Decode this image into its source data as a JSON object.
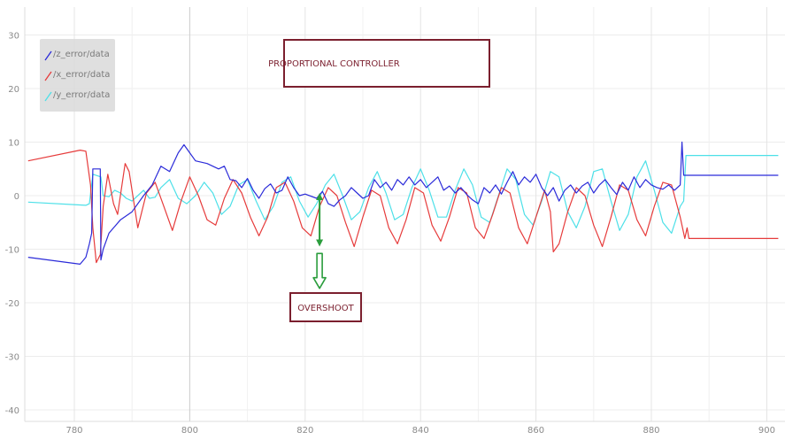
{
  "chart_data": {
    "type": "line",
    "title": "",
    "xlabel": "",
    "ylabel": "",
    "xlim": [
      772,
      902
    ],
    "ylim": [
      -42,
      32
    ],
    "x_ticks": [
      780,
      800,
      820,
      840,
      860,
      880,
      900
    ],
    "x_tick_labels": [
      "780",
      "800",
      "820",
      "840",
      "860",
      "880",
      "900"
    ],
    "y_ticks": [
      30,
      20,
      10,
      0,
      -10,
      -20,
      -30,
      -40
    ],
    "y_tick_labels": [
      "30",
      "20",
      "10",
      "0",
      "-10",
      "-20",
      "-30",
      "-40"
    ],
    "grid": true,
    "legend_position": "top-left",
    "series": [
      {
        "name": "/z_error/data",
        "color": "#2b2bd9",
        "points": [
          [
            772,
            -11.5
          ],
          [
            781,
            -12.8
          ],
          [
            782,
            -11.5
          ],
          [
            782.6,
            -9
          ],
          [
            783,
            -7
          ],
          [
            783.2,
            5
          ],
          [
            784.5,
            5
          ],
          [
            784.6,
            -12
          ],
          [
            785,
            -10
          ],
          [
            786,
            -7
          ],
          [
            788,
            -4.5
          ],
          [
            790,
            -3
          ],
          [
            792,
            0
          ],
          [
            793.5,
            2
          ],
          [
            795,
            5.5
          ],
          [
            796.5,
            4.5
          ],
          [
            798,
            8
          ],
          [
            799,
            9.5
          ],
          [
            800,
            8
          ],
          [
            801,
            6.5
          ],
          [
            803,
            6
          ],
          [
            805,
            5
          ],
          [
            806,
            5.5
          ],
          [
            807,
            3
          ],
          [
            808,
            2.8
          ],
          [
            809,
            1.5
          ],
          [
            810,
            3.2
          ],
          [
            811,
            1
          ],
          [
            812,
            -0.5
          ],
          [
            813,
            1.3
          ],
          [
            814,
            2.2
          ],
          [
            815,
            0.5
          ],
          [
            816,
            1
          ],
          [
            817,
            3.5
          ],
          [
            818,
            1.5
          ],
          [
            819,
            0
          ],
          [
            820,
            0.3
          ],
          [
            822,
            -0.5
          ],
          [
            823,
            0.8
          ],
          [
            824,
            -1.5
          ],
          [
            825,
            -2
          ],
          [
            826,
            -0.8
          ],
          [
            827,
            0
          ],
          [
            828,
            1.5
          ],
          [
            829,
            0.5
          ],
          [
            830,
            -0.5
          ],
          [
            831,
            0
          ],
          [
            832,
            3
          ],
          [
            833,
            1.5
          ],
          [
            834,
            2.5
          ],
          [
            835,
            1
          ],
          [
            836,
            3
          ],
          [
            837,
            2
          ],
          [
            838,
            3.5
          ],
          [
            839,
            2
          ],
          [
            840,
            3
          ],
          [
            841,
            1.5
          ],
          [
            842,
            2.5
          ],
          [
            843,
            3.5
          ],
          [
            844,
            1
          ],
          [
            845,
            1.8
          ],
          [
            846,
            0.5
          ],
          [
            847,
            1.5
          ],
          [
            848,
            0.2
          ],
          [
            849,
            -0.8
          ],
          [
            850,
            -1.5
          ],
          [
            851,
            1.5
          ],
          [
            852,
            0.5
          ],
          [
            853,
            2
          ],
          [
            854,
            0.3
          ],
          [
            855,
            2.5
          ],
          [
            856,
            4.5
          ],
          [
            857,
            2
          ],
          [
            858,
            3.5
          ],
          [
            859,
            2.5
          ],
          [
            860,
            4
          ],
          [
            861,
            1.5
          ],
          [
            862,
            0
          ],
          [
            863,
            1.5
          ],
          [
            864,
            -1
          ],
          [
            865,
            1
          ],
          [
            866,
            2
          ],
          [
            867,
            0.5
          ],
          [
            868,
            1.8
          ],
          [
            869,
            2.5
          ],
          [
            870,
            0.5
          ],
          [
            871,
            2
          ],
          [
            872,
            3
          ],
          [
            873,
            1.5
          ],
          [
            874,
            0.2
          ],
          [
            875,
            2.5
          ],
          [
            876,
            1
          ],
          [
            877,
            3.5
          ],
          [
            878,
            1.5
          ],
          [
            879,
            3
          ],
          [
            880,
            2
          ],
          [
            881,
            1.5
          ],
          [
            882,
            1.2
          ],
          [
            883,
            2
          ],
          [
            884,
            1
          ],
          [
            885,
            2
          ],
          [
            885.3,
            10
          ],
          [
            885.6,
            3.8
          ],
          [
            902,
            3.8
          ]
        ]
      },
      {
        "name": "/x_error/data",
        "color": "#e63b3b",
        "points": [
          [
            772,
            6.5
          ],
          [
            781,
            8.5
          ],
          [
            782,
            8.3
          ],
          [
            782.8,
            2
          ],
          [
            783.2,
            -6
          ],
          [
            783.8,
            -12.5
          ],
          [
            784.5,
            -11
          ],
          [
            785,
            -2
          ],
          [
            785.8,
            4
          ],
          [
            786.8,
            -1.5
          ],
          [
            787.5,
            -3.5
          ],
          [
            788.8,
            6
          ],
          [
            789.5,
            4.5
          ],
          [
            791,
            -6
          ],
          [
            792.5,
            0.5
          ],
          [
            794,
            2.5
          ],
          [
            795.5,
            -2
          ],
          [
            797,
            -6.5
          ],
          [
            798.5,
            -1
          ],
          [
            800,
            3.5
          ],
          [
            801.5,
            0
          ],
          [
            803,
            -4.5
          ],
          [
            804.5,
            -5.5
          ],
          [
            806,
            -0.5
          ],
          [
            807.5,
            3
          ],
          [
            809,
            0.5
          ],
          [
            810.5,
            -4
          ],
          [
            812,
            -7.5
          ],
          [
            813.5,
            -4
          ],
          [
            815,
            1.5
          ],
          [
            816.5,
            2.5
          ],
          [
            818,
            -1
          ],
          [
            819.5,
            -6
          ],
          [
            821,
            -7.5
          ],
          [
            822.5,
            -2
          ],
          [
            824,
            1.5
          ],
          [
            825.5,
            0
          ],
          [
            827,
            -5
          ],
          [
            828.5,
            -9.5
          ],
          [
            830,
            -4
          ],
          [
            831.5,
            1
          ],
          [
            833,
            0
          ],
          [
            834.5,
            -6
          ],
          [
            836,
            -9
          ],
          [
            837.5,
            -4.5
          ],
          [
            839,
            1.5
          ],
          [
            840.5,
            0.5
          ],
          [
            842,
            -5.5
          ],
          [
            843.5,
            -8.5
          ],
          [
            845,
            -4
          ],
          [
            846.5,
            1.5
          ],
          [
            848,
            0.5
          ],
          [
            849.5,
            -6
          ],
          [
            851,
            -8
          ],
          [
            852.5,
            -3.5
          ],
          [
            854,
            1.5
          ],
          [
            855.5,
            0.5
          ],
          [
            857,
            -6
          ],
          [
            858.5,
            -9
          ],
          [
            860,
            -4
          ],
          [
            861.5,
            1
          ],
          [
            862.5,
            -3
          ],
          [
            863,
            -10.5
          ],
          [
            864,
            -9
          ],
          [
            865.5,
            -3
          ],
          [
            867,
            1.5
          ],
          [
            868.5,
            0
          ],
          [
            870,
            -5.5
          ],
          [
            871.5,
            -9.5
          ],
          [
            873,
            -4
          ],
          [
            874.5,
            2
          ],
          [
            876,
            1
          ],
          [
            877.5,
            -4.5
          ],
          [
            879,
            -7.5
          ],
          [
            880.5,
            -2
          ],
          [
            882,
            2.5
          ],
          [
            883.5,
            2
          ],
          [
            885,
            -4
          ],
          [
            885.8,
            -8
          ],
          [
            886.2,
            -6
          ],
          [
            886.5,
            -8
          ],
          [
            902,
            -8
          ]
        ]
      },
      {
        "name": "/y_error/data",
        "color": "#4de0e8",
        "points": [
          [
            772,
            -1.2
          ],
          [
            782,
            -1.8
          ],
          [
            782.6,
            -1.5
          ],
          [
            783.2,
            4
          ],
          [
            784.6,
            3.5
          ],
          [
            785,
            0
          ],
          [
            786,
            -0.2
          ],
          [
            787,
            1
          ],
          [
            788,
            0.5
          ],
          [
            789,
            -0.5
          ],
          [
            790,
            -1
          ],
          [
            791,
            0
          ],
          [
            792,
            1
          ],
          [
            793,
            -0.5
          ],
          [
            794,
            -0.3
          ],
          [
            795,
            1.5
          ],
          [
            796.5,
            3
          ],
          [
            798,
            -0.5
          ],
          [
            799.5,
            -1.5
          ],
          [
            801,
            0
          ],
          [
            802.5,
            2.5
          ],
          [
            804,
            0.5
          ],
          [
            805.5,
            -3.5
          ],
          [
            807,
            -2
          ],
          [
            808.5,
            2
          ],
          [
            810,
            3
          ],
          [
            811.5,
            -1
          ],
          [
            813,
            -4.5
          ],
          [
            814.5,
            -2
          ],
          [
            816,
            2.5
          ],
          [
            817.5,
            3.5
          ],
          [
            819,
            -1
          ],
          [
            820.5,
            -4
          ],
          [
            822,
            -1.5
          ],
          [
            823.5,
            2
          ],
          [
            825,
            4
          ],
          [
            826.5,
            0
          ],
          [
            828,
            -4.5
          ],
          [
            829.5,
            -3
          ],
          [
            831,
            1.5
          ],
          [
            832.5,
            4.5
          ],
          [
            834,
            0.5
          ],
          [
            835.5,
            -4.5
          ],
          [
            837,
            -3.5
          ],
          [
            838.5,
            1.5
          ],
          [
            840,
            5
          ],
          [
            841.5,
            1
          ],
          [
            843,
            -4
          ],
          [
            844.5,
            -4
          ],
          [
            846,
            1
          ],
          [
            847.5,
            5
          ],
          [
            849,
            2
          ],
          [
            850.5,
            -4
          ],
          [
            852,
            -5
          ],
          [
            853.5,
            0
          ],
          [
            855,
            5
          ],
          [
            856.5,
            3
          ],
          [
            858,
            -3.5
          ],
          [
            859.5,
            -5.5
          ],
          [
            861,
            -1
          ],
          [
            862.5,
            4.5
          ],
          [
            864,
            3.5
          ],
          [
            865.5,
            -3
          ],
          [
            867,
            -6
          ],
          [
            868.5,
            -2
          ],
          [
            870,
            4.5
          ],
          [
            871.5,
            5
          ],
          [
            873,
            -1
          ],
          [
            874.5,
            -6.5
          ],
          [
            876,
            -3.5
          ],
          [
            877.5,
            3.5
          ],
          [
            879,
            6.5
          ],
          [
            880.5,
            1
          ],
          [
            882,
            -5
          ],
          [
            883.5,
            -7
          ],
          [
            885,
            -2
          ],
          [
            885.6,
            -1
          ],
          [
            886,
            7.5
          ],
          [
            902,
            7.5
          ]
        ]
      }
    ],
    "annotations": [
      {
        "text": "PROPORTIONAL CONTROLLER",
        "x": 825,
        "y": 24.8
      },
      {
        "text": "OVERSHOOT",
        "x": 822.8,
        "y": -21
      }
    ],
    "overshoot_arrow": {
      "x": 822.5,
      "y_top": 0.5,
      "y_bottom": -9.5,
      "hollow_arrow_top": -10.8,
      "hollow_arrow_bottom": -17.3
    }
  }
}
